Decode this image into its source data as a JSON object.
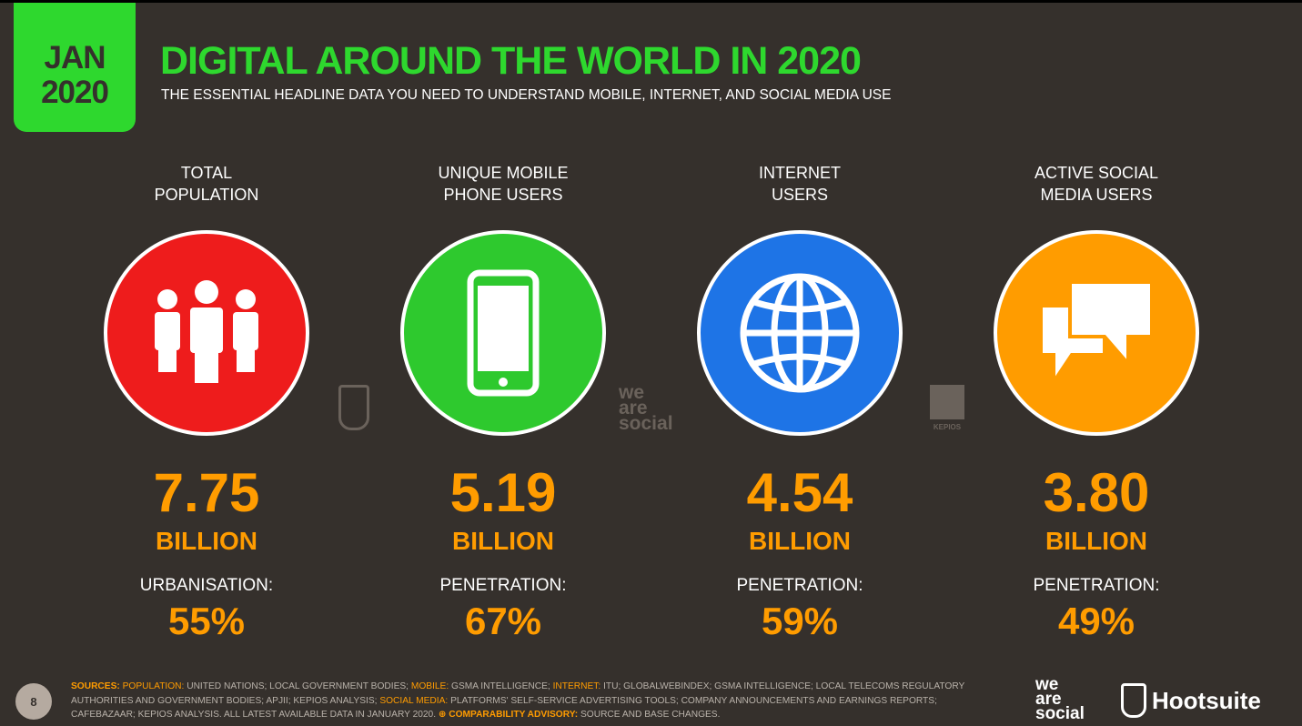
{
  "badge": {
    "line1": "JAN",
    "line2": "2020"
  },
  "title": "DIGITAL AROUND THE WORLD IN 2020",
  "subtitle": "THE ESSENTIAL HEADLINE DATA YOU NEED TO UNDERSTAND MOBILE, INTERNET, AND SOCIAL MEDIA USE",
  "stats": [
    {
      "label1": "TOTAL",
      "label2": "POPULATION",
      "icon": "people-icon",
      "color": "#ee1c1c",
      "value": "7.75",
      "unit": "BILLION",
      "sub_label": "URBANISATION:",
      "sub_value": "55%"
    },
    {
      "label1": "UNIQUE MOBILE",
      "label2": "PHONE USERS",
      "icon": "mobile-phone-icon",
      "color": "#2ec92e",
      "value": "5.19",
      "unit": "BILLION",
      "sub_label": "PENETRATION:",
      "sub_value": "67%"
    },
    {
      "label1": "INTERNET",
      "label2": "USERS",
      "icon": "globe-icon",
      "color": "#1e74e6",
      "value": "4.54",
      "unit": "BILLION",
      "sub_label": "PENETRATION:",
      "sub_value": "59%"
    },
    {
      "label1": "ACTIVE SOCIAL",
      "label2": "MEDIA USERS",
      "icon": "speech-bubbles-icon",
      "color": "#ff9c00",
      "value": "3.80",
      "unit": "BILLION",
      "sub_label": "PENETRATION:",
      "sub_value": "49%"
    }
  ],
  "watermarks": {
    "we_are_social": [
      "we",
      "are",
      "social"
    ],
    "kepios": "KEPIOS"
  },
  "footer": {
    "page": "8",
    "sources_label": "SOURCES:",
    "population_label": "POPULATION:",
    "population_text": "UNITED NATIONS; LOCAL GOVERNMENT BODIES;",
    "mobile_label": "MOBILE:",
    "mobile_text": "GSMA INTELLIGENCE;",
    "internet_label": "INTERNET:",
    "internet_text": "ITU; GLOBALWEBINDEX; GSMA INTELLIGENCE; LOCAL TELECOMS REGULATORY AUTHORITIES AND GOVERNMENT BODIES; APJII; KEPIOS ANALYSIS;",
    "social_label": "SOCIAL MEDIA:",
    "social_text": "PLATFORMS' SELF-SERVICE ADVERTISING TOOLS; COMPANY ANNOUNCEMENTS AND EARNINGS REPORTS; CAFEBAZAAR; KEPIOS ANALYSIS. ALL LATEST AVAILABLE DATA IN JANUARY 2020.",
    "advisory_label": "⊕ COMPARABILITY ADVISORY:",
    "advisory_text": "SOURCE AND BASE CHANGES."
  },
  "logos": {
    "we_are_social": [
      "we",
      "are",
      "social"
    ],
    "hootsuite": "Hootsuite"
  }
}
